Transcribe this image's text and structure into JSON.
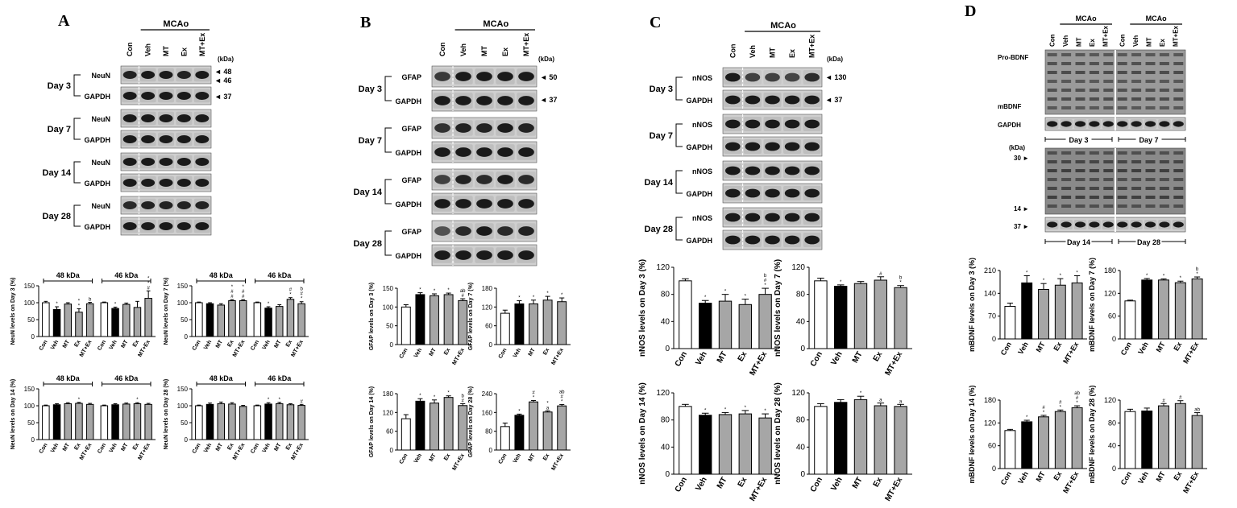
{
  "groups": [
    "Con",
    "Veh",
    "MT",
    "Ex",
    "MT+Ex"
  ],
  "header_label": "MCAo",
  "kda_unit": "(kDa)",
  "panelA": {
    "letter": "A",
    "marker_labels": [
      "◄ 48",
      "◄ 46",
      "◄ 37"
    ],
    "blots": [
      {
        "day": "Day 3",
        "rows": [
          "NeuN",
          "GAPDH"
        ]
      },
      {
        "day": "Day 7",
        "rows": [
          "NeuN",
          "GAPDH"
        ]
      },
      {
        "day": "Day 14",
        "rows": [
          "NeuN",
          "GAPDH"
        ]
      },
      {
        "day": "Day 28",
        "rows": [
          "NeuN",
          "GAPDH"
        ]
      }
    ]
  },
  "panelB": {
    "letter": "B",
    "marker_labels": [
      "◄ 50",
      "◄ 37"
    ],
    "blots": [
      {
        "day": "Day 3",
        "rows": [
          "GFAP",
          "GAPDH"
        ]
      },
      {
        "day": "Day 7",
        "rows": [
          "GFAP",
          "GAPDH"
        ]
      },
      {
        "day": "Day 14",
        "rows": [
          "GFAP",
          "GAPDH"
        ]
      },
      {
        "day": "Day 28",
        "rows": [
          "GFAP",
          "GAPDH"
        ]
      }
    ]
  },
  "panelC": {
    "letter": "C",
    "marker_labels": [
      "◄ 130",
      "◄ 37"
    ],
    "blots": [
      {
        "day": "Day 3",
        "rows": [
          "nNOS",
          "GAPDH"
        ]
      },
      {
        "day": "Day 7",
        "rows": [
          "nNOS",
          "GAPDH"
        ]
      },
      {
        "day": "Day 14",
        "rows": [
          "nNOS",
          "GAPDH"
        ]
      },
      {
        "day": "Day 28",
        "rows": [
          "nNOS",
          "GAPDH"
        ]
      }
    ]
  },
  "panelD": {
    "letter": "D",
    "row_labels": [
      "Pro-BDNF",
      "mBDNF",
      "GAPDH"
    ],
    "day_labels_top": [
      "Day 3",
      "Day 7"
    ],
    "day_labels_bottom": [
      "Day 14",
      "Day 28"
    ],
    "marker_labels": [
      "30 ►",
      "14 ►",
      "37 ►"
    ]
  },
  "chart_data": [
    {
      "type": "bar",
      "panel": "A",
      "ylabel": "NeuN levels on Day 3 (%)",
      "ylim": [
        0,
        150
      ],
      "yticks": [
        0,
        50,
        100,
        150
      ],
      "subgroups": [
        {
          "label": "48 kDa",
          "values": [
            100,
            80,
            96,
            72,
            97
          ],
          "errors": [
            4,
            8,
            4,
            10,
            4
          ],
          "marks": [
            "",
            "*",
            "",
            "* *",
            "b"
          ]
        },
        {
          "label": "46 kDa",
          "values": [
            100,
            83,
            95,
            86,
            113
          ],
          "errors": [
            2,
            4,
            4,
            18,
            22
          ],
          "marks": [
            "",
            "*",
            "",
            "",
            "* * #"
          ]
        }
      ]
    },
    {
      "type": "bar",
      "panel": "A",
      "ylabel": "NeuN levels on Day 7 (%)",
      "ylim": [
        0,
        150
      ],
      "yticks": [
        0,
        50,
        100,
        150
      ],
      "subgroups": [
        {
          "label": "48 kDa",
          "values": [
            100,
            97,
            93,
            106,
            106
          ],
          "errors": [
            2,
            3,
            4,
            3,
            3
          ],
          "marks": [
            "",
            "",
            "",
            "* # #",
            "* # #"
          ]
        },
        {
          "label": "46 kDa",
          "values": [
            100,
            84,
            89,
            110,
            97
          ],
          "errors": [
            2,
            4,
            5,
            5,
            6
          ],
          "marks": [
            "",
            "*",
            "",
            "# *",
            "b # *"
          ]
        }
      ]
    },
    {
      "type": "bar",
      "panel": "A",
      "ylabel": "NeuN levels on Day 14 (%)",
      "ylim": [
        0,
        150
      ],
      "yticks": [
        0,
        50,
        100,
        150
      ],
      "subgroups": [
        {
          "label": "48 kDa",
          "values": [
            100,
            103,
            106,
            107,
            104
          ],
          "errors": [
            2,
            3,
            3,
            3,
            3
          ],
          "marks": [
            "",
            "",
            "",
            "*",
            ""
          ]
        },
        {
          "label": "46 kDa",
          "values": [
            100,
            103,
            105,
            106,
            104
          ],
          "errors": [
            2,
            3,
            3,
            3,
            3
          ],
          "marks": [
            "",
            "",
            "",
            "*",
            ""
          ]
        }
      ]
    },
    {
      "type": "bar",
      "panel": "A",
      "ylabel": "NeuN levels on Day 28 (%)",
      "ylim": [
        0,
        150
      ],
      "yticks": [
        0,
        50,
        100,
        150
      ],
      "subgroups": [
        {
          "label": "48 kDa",
          "values": [
            100,
            104,
            106,
            105,
            98
          ],
          "errors": [
            2,
            4,
            5,
            4,
            3
          ],
          "marks": [
            "",
            "",
            "",
            "",
            ""
          ]
        },
        {
          "label": "46 kDa",
          "values": [
            100,
            105,
            106,
            103,
            101
          ],
          "errors": [
            2,
            4,
            4,
            3,
            3
          ],
          "marks": [
            "",
            "*",
            "*",
            "",
            "#"
          ]
        }
      ]
    },
    {
      "type": "bar",
      "panel": "B",
      "ylabel": "GFAP levels on Day 3 (%)",
      "ylim": [
        0,
        150
      ],
      "yticks": [
        0,
        50,
        100,
        150
      ],
      "values": [
        100,
        133,
        130,
        133,
        117
      ],
      "errors": [
        6,
        5,
        5,
        4,
        5
      ],
      "marks": [
        "",
        "*",
        "*",
        "*",
        "ab #"
      ]
    },
    {
      "type": "bar",
      "panel": "B",
      "ylabel": "GFAP levels on Day 7 (%)",
      "ylim": [
        0,
        180
      ],
      "yticks": [
        0,
        60,
        120,
        180
      ],
      "values": [
        100,
        130,
        130,
        142,
        137
      ],
      "errors": [
        10,
        10,
        12,
        12,
        12
      ],
      "marks": [
        "",
        "*",
        "*",
        "*",
        "*"
      ]
    },
    {
      "type": "bar",
      "panel": "B",
      "ylabel": "GFAP levels on Day 14 (%)",
      "ylim": [
        0,
        180
      ],
      "yticks": [
        0,
        60,
        120,
        180
      ],
      "values": [
        100,
        156,
        150,
        168,
        142
      ],
      "errors": [
        13,
        8,
        10,
        5,
        6
      ],
      "marks": [
        "",
        "*",
        "*",
        "*",
        "b #"
      ]
    },
    {
      "type": "bar",
      "panel": "B",
      "ylabel": "GFAP levels on Day 28 (%)",
      "ylim": [
        0,
        240
      ],
      "yticks": [
        0,
        80,
        160,
        240
      ],
      "values": [
        100,
        148,
        205,
        162,
        188
      ],
      "errors": [
        15,
        5,
        6,
        5,
        6
      ],
      "marks": [
        "",
        "*",
        "# *",
        "* a",
        "ab # *"
      ]
    },
    {
      "type": "bar",
      "panel": "C",
      "ylabel": "nNOS levels on Day 3 (%)",
      "ylim": [
        0,
        120
      ],
      "yticks": [
        0,
        40,
        80,
        120
      ],
      "values": [
        100,
        67,
        70,
        65,
        80
      ],
      "errors": [
        3,
        4,
        10,
        8,
        9
      ],
      "marks": [
        "",
        "*",
        "*",
        "*",
        "b # *"
      ]
    },
    {
      "type": "bar",
      "panel": "C",
      "ylabel": "nNOS levels on Day 7 (%)",
      "ylim": [
        0,
        120
      ],
      "yticks": [
        0,
        40,
        80,
        120
      ],
      "values": [
        100,
        92,
        96,
        101,
        90
      ],
      "errors": [
        4,
        2,
        3,
        5,
        3
      ],
      "marks": [
        "",
        "*",
        "",
        "#",
        "b *"
      ]
    },
    {
      "type": "bar",
      "panel": "C",
      "ylabel": "nNOS levels on Day 14 (%)",
      "ylim": [
        0,
        120
      ],
      "yticks": [
        0,
        40,
        80,
        120
      ],
      "values": [
        100,
        87,
        88,
        89,
        83
      ],
      "errors": [
        3,
        3,
        3,
        5,
        6
      ],
      "marks": [
        "",
        "*",
        "*",
        "*",
        "*"
      ]
    },
    {
      "type": "bar",
      "panel": "C",
      "ylabel": "nNOS levels on Day 28 (%)",
      "ylim": [
        0,
        120
      ],
      "yticks": [
        0,
        40,
        80,
        120
      ],
      "values": [
        100,
        106,
        110,
        101,
        100
      ],
      "errors": [
        4,
        4,
        5,
        4,
        3
      ],
      "marks": [
        "",
        "",
        "*",
        "a",
        "a"
      ]
    },
    {
      "type": "bar",
      "panel": "D",
      "ylabel": "mBDNF levels on Day 3 (%)",
      "ylim": [
        0,
        210
      ],
      "yticks": [
        0,
        70,
        140,
        210
      ],
      "values": [
        100,
        172,
        152,
        165,
        172
      ],
      "errors": [
        10,
        22,
        18,
        20,
        22
      ],
      "marks": [
        "",
        "*",
        "*",
        "*",
        "*"
      ]
    },
    {
      "type": "bar",
      "panel": "D",
      "ylabel": "mBDNF levels on Day 7 (%)",
      "ylim": [
        0,
        180
      ],
      "yticks": [
        0,
        60,
        120,
        180
      ],
      "values": [
        100,
        155,
        155,
        148,
        158
      ],
      "errors": [
        2,
        4,
        3,
        4,
        5
      ],
      "marks": [
        "",
        "*",
        "*",
        "*",
        "b *"
      ]
    },
    {
      "type": "bar",
      "panel": "D",
      "ylabel": "mBDNF levels on Day 14 (%)",
      "ylim": [
        0,
        180
      ],
      "yticks": [
        0,
        60,
        120,
        180
      ],
      "values": [
        100,
        123,
        136,
        150,
        160
      ],
      "errors": [
        3,
        4,
        4,
        4,
        5
      ],
      "marks": [
        "",
        "*",
        "# *",
        "# *",
        "ab # *"
      ]
    },
    {
      "type": "bar",
      "panel": "D",
      "ylabel": "mBDNF levels on Day 28 (%)",
      "ylim": [
        0,
        120
      ],
      "yticks": [
        0,
        40,
        80,
        120
      ],
      "values": [
        100,
        101,
        110,
        114,
        93
      ],
      "errors": [
        4,
        5,
        4,
        5,
        5
      ],
      "marks": [
        "",
        "",
        "#",
        "#",
        "ab"
      ]
    }
  ]
}
